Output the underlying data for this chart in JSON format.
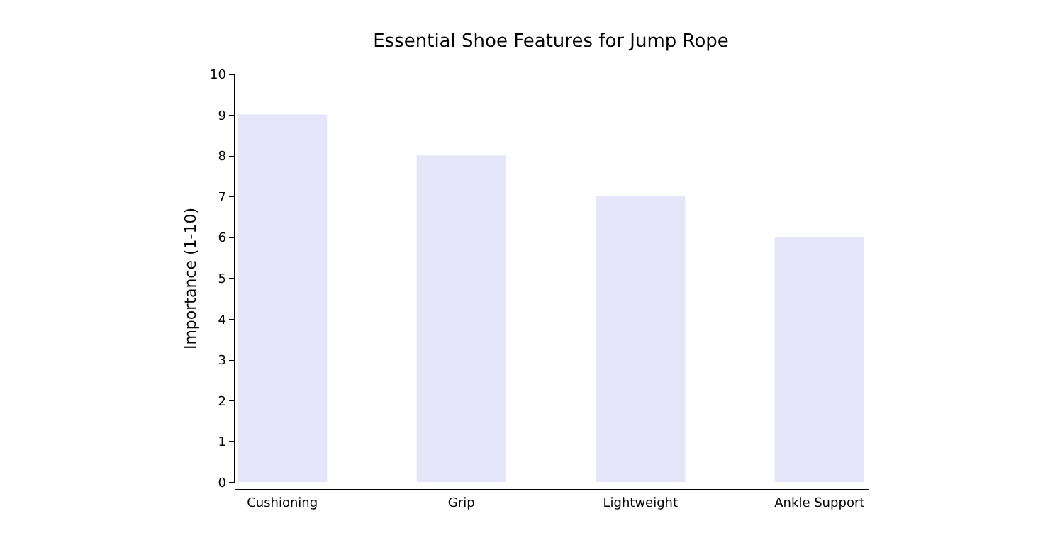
{
  "chart_data": {
    "type": "bar",
    "title": "Essential Shoe Features for Jump Rope",
    "ylabel": "Importance (1-10)",
    "categories": [
      "Cushioning",
      "Grip",
      "Lightweight",
      "Ankle Support"
    ],
    "values": [
      9,
      8,
      7,
      6
    ],
    "color": "#e6e6fa",
    "ylim": [
      0,
      10
    ],
    "yticks": [
      0,
      1,
      2,
      3,
      4,
      5,
      6,
      7,
      8,
      9,
      10
    ],
    "grid": false
  }
}
